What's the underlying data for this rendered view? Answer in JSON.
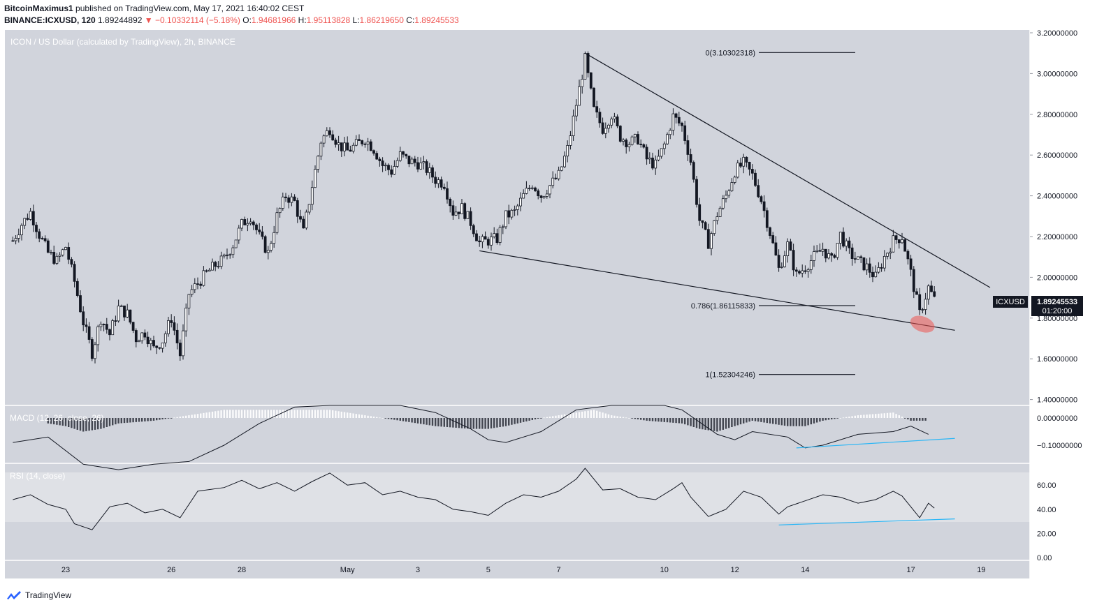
{
  "header": {
    "author": "BitcoinMaximus1",
    "published": "published on TradingView.com, May 17, 2021 16:40:02 CEST",
    "symbol_line": "BINANCE:ICXUSD, 120",
    "last": "1.89244892",
    "change": "−0.10332114 (−5.18%)",
    "open_label": "O:",
    "open": "1.94681966",
    "high_label": "H:",
    "high": "1.95113828",
    "low_label": "L:",
    "low": "1.86219650",
    "close_label": "C:",
    "close": "1.89245533"
  },
  "footer": {
    "brand": "TradingView"
  },
  "colors": {
    "pane_bg": "#d1d4dc",
    "band_bg": "#dfe1e6",
    "candle": "#131722",
    "trend_line": "#131722",
    "divergence": "#29b6f6",
    "highlight": "#ef5350"
  },
  "chart_data": {
    "type": "candlestick",
    "title": "ICON / US Dollar (calculated by TradingView), 2h, BINANCE",
    "currency": "USD",
    "price_axis": {
      "ticks": [
        "3.20000000",
        "3.00000000",
        "2.80000000",
        "2.60000000",
        "2.40000000",
        "2.20000000",
        "2.00000000",
        "1.80000000",
        "1.60000000",
        "1.40000000"
      ],
      "ylim": [
        1.4,
        3.2
      ]
    },
    "x_axis": {
      "labels": [
        "23",
        "26",
        "28",
        "May",
        "3",
        "5",
        "7",
        "10",
        "12",
        "14",
        "17",
        "19"
      ]
    },
    "price_label": {
      "symbol": "ICXUSD",
      "price": "1.89245533",
      "countdown": "01:20:00"
    },
    "close_path": [
      [
        "Apr 21 12:00",
        2.18
      ],
      [
        "Apr 21 18:00",
        2.26
      ],
      [
        "Apr 22 00:00",
        2.32
      ],
      [
        "Apr 22 06:00",
        2.21
      ],
      [
        "Apr 22 12:00",
        2.12
      ],
      [
        "Apr 22 18:00",
        2.08
      ],
      [
        "Apr 23 00:00",
        2.15
      ],
      [
        "Apr 23 06:00",
        1.98
      ],
      [
        "Apr 23 12:00",
        1.78
      ],
      [
        "Apr 23 18:00",
        1.63
      ],
      [
        "Apr 24 00:00",
        1.8
      ],
      [
        "Apr 24 06:00",
        1.72
      ],
      [
        "Apr 24 12:00",
        1.85
      ],
      [
        "Apr 24 18:00",
        1.82
      ],
      [
        "Apr 25 00:00",
        1.7
      ],
      [
        "Apr 25 06:00",
        1.73
      ],
      [
        "Apr 25 12:00",
        1.65
      ],
      [
        "Apr 25 18:00",
        1.69
      ],
      [
        "Apr 26 00:00",
        1.8
      ],
      [
        "Apr 26 06:00",
        1.62
      ],
      [
        "Apr 26 12:00",
        1.92
      ],
      [
        "Apr 26 18:00",
        1.97
      ],
      [
        "Apr 27 00:00",
        2.02
      ],
      [
        "Apr 27 06:00",
        2.06
      ],
      [
        "Apr 27 12:00",
        2.09
      ],
      [
        "Apr 27 18:00",
        2.16
      ],
      [
        "Apr 28 00:00",
        2.26
      ],
      [
        "Apr 28 06:00",
        2.3
      ],
      [
        "Apr 28 12:00",
        2.2
      ],
      [
        "Apr 28 18:00",
        2.12
      ],
      [
        "Apr 29 00:00",
        2.3
      ],
      [
        "Apr 29 06:00",
        2.4
      ],
      [
        "Apr 29 12:00",
        2.37
      ],
      [
        "Apr 29 18:00",
        2.22
      ],
      [
        "Apr 30 00:00",
        2.45
      ],
      [
        "Apr 30 06:00",
        2.67
      ],
      [
        "Apr 30 12:00",
        2.73
      ],
      [
        "Apr 30 18:00",
        2.65
      ],
      [
        "May 1 00:00",
        2.62
      ],
      [
        "May 1 06:00",
        2.65
      ],
      [
        "May 1 12:00",
        2.68
      ],
      [
        "May 1 18:00",
        2.63
      ],
      [
        "May 2 00:00",
        2.55
      ],
      [
        "May 2 06:00",
        2.52
      ],
      [
        "May 2 12:00",
        2.6
      ],
      [
        "May 2 18:00",
        2.57
      ],
      [
        "May 3 00:00",
        2.56
      ],
      [
        "May 3 06:00",
        2.53
      ],
      [
        "May 3 12:00",
        2.48
      ],
      [
        "May 3 18:00",
        2.46
      ],
      [
        "May 4 00:00",
        2.32
      ],
      [
        "May 4 06:00",
        2.34
      ],
      [
        "May 4 12:00",
        2.27
      ],
      [
        "May 4 18:00",
        2.17
      ],
      [
        "May 5 00:00",
        2.18
      ],
      [
        "May 5 06:00",
        2.19
      ],
      [
        "May 5 12:00",
        2.3
      ],
      [
        "May 5 18:00",
        2.32
      ],
      [
        "May 6 00:00",
        2.4
      ],
      [
        "May 6 06:00",
        2.46
      ],
      [
        "May 6 12:00",
        2.4
      ],
      [
        "May 6 18:00",
        2.45
      ],
      [
        "May 7 00:00",
        2.5
      ],
      [
        "May 7 06:00",
        2.63
      ],
      [
        "May 7 12:00",
        2.85
      ],
      [
        "May 7 18:00",
        3.07
      ],
      [
        "May 8 00:00",
        2.82
      ],
      [
        "May 8 06:00",
        2.73
      ],
      [
        "May 8 12:00",
        2.8
      ],
      [
        "May 8 18:00",
        2.69
      ],
      [
        "May 9 00:00",
        2.66
      ],
      [
        "May 9 06:00",
        2.68
      ],
      [
        "May 9 12:00",
        2.58
      ],
      [
        "May 9 18:00",
        2.55
      ],
      [
        "May 10 00:00",
        2.65
      ],
      [
        "May 10 06:00",
        2.79
      ],
      [
        "May 10 12:00",
        2.74
      ],
      [
        "May 10 18:00",
        2.57
      ],
      [
        "May 11 00:00",
        2.28
      ],
      [
        "May 11 06:00",
        2.17
      ],
      [
        "May 11 12:00",
        2.31
      ],
      [
        "May 11 18:00",
        2.4
      ],
      [
        "May 12 00:00",
        2.52
      ],
      [
        "May 12 06:00",
        2.56
      ],
      [
        "May 12 12:00",
        2.5
      ],
      [
        "May 12 18:00",
        2.38
      ],
      [
        "May 13 00:00",
        2.22
      ],
      [
        "May 13 06:00",
        2.04
      ],
      [
        "May 13 12:00",
        2.16
      ],
      [
        "May 13 18:00",
        2.01
      ],
      [
        "May 14 00:00",
        2.05
      ],
      [
        "May 14 06:00",
        2.1
      ],
      [
        "May 14 12:00",
        2.14
      ],
      [
        "May 14 18:00",
        2.08
      ],
      [
        "May 15 00:00",
        2.21
      ],
      [
        "May 15 06:00",
        2.12
      ],
      [
        "May 15 12:00",
        2.08
      ],
      [
        "May 15 18:00",
        2.05
      ],
      [
        "May 16 00:00",
        2.0
      ],
      [
        "May 16 06:00",
        2.1
      ],
      [
        "May 16 12:00",
        2.18
      ],
      [
        "May 16 18:00",
        2.2
      ],
      [
        "May 17 00:00",
        2.02
      ],
      [
        "May 17 06:00",
        1.82
      ],
      [
        "May 17 12:00",
        1.95
      ],
      [
        "May 17 16:00",
        1.89
      ]
    ],
    "trend_lines": [
      {
        "name": "upper-trendline",
        "from": [
          "May 7 18:00",
          3.1
        ],
        "to": [
          "May 19 06:00",
          1.95
        ]
      },
      {
        "name": "lower-trendline",
        "from": [
          "May 4 18:00",
          2.13
        ],
        "to": [
          "May 18 06:00",
          1.74
        ]
      }
    ],
    "fib_levels": [
      {
        "label": "0(3.10302318)",
        "ratio": 0,
        "value": 3.10302318
      },
      {
        "label": "0.786(1.86115833)",
        "ratio": 0.786,
        "value": 1.86115833
      },
      {
        "label": "1(1.52304246)",
        "ratio": 1,
        "value": 1.52304246
      }
    ],
    "highlight": {
      "time": "May 17 06:00",
      "value": 1.77
    },
    "macd": {
      "label": "MACD (12, 26, close, 26)",
      "ticks": [
        "0.00000000",
        "−0.10000000"
      ],
      "macd_path": [
        [
          "Apr 21 12:00",
          -0.09
        ],
        [
          "Apr 22 12:00",
          -0.07
        ],
        [
          "Apr 23 12:00",
          -0.17
        ],
        [
          "Apr 24 12:00",
          -0.19
        ],
        [
          "Apr 25 12:00",
          -0.17
        ],
        [
          "Apr 26 12:00",
          -0.16
        ],
        [
          "Apr 27 12:00",
          -0.1
        ],
        [
          "Apr 28 12:00",
          -0.02
        ],
        [
          "Apr 29 12:00",
          0.04
        ],
        [
          "Apr 30 12:00",
          0.1
        ],
        [
          "May 1 12:00",
          0.09
        ],
        [
          "May 2 12:00",
          0.06
        ],
        [
          "May 3 12:00",
          0.02
        ],
        [
          "May 4 12:00",
          -0.04
        ],
        [
          "May 5 00:00",
          -0.08
        ],
        [
          "May 5 12:00",
          -0.09
        ],
        [
          "May 6 12:00",
          -0.05
        ],
        [
          "May 7 12:00",
          0.03
        ],
        [
          "May 8 12:00",
          0.09
        ],
        [
          "May 9 12:00",
          0.07
        ],
        [
          "May 10 00:00",
          0.06
        ],
        [
          "May 10 12:00",
          0.03
        ],
        [
          "May 11 12:00",
          -0.06
        ],
        [
          "May 12 00:00",
          -0.08
        ],
        [
          "May 12 12:00",
          -0.05
        ],
        [
          "May 13 12:00",
          -0.07
        ],
        [
          "May 14 00:00",
          -0.11
        ],
        [
          "May 14 12:00",
          -0.1
        ],
        [
          "May 15 12:00",
          -0.06
        ],
        [
          "May 16 12:00",
          -0.05
        ],
        [
          "May 17 00:00",
          -0.03
        ],
        [
          "May 17 12:00",
          -0.06
        ]
      ],
      "histogram": [
        [
          "Apr 22 12:00",
          -0.02
        ],
        [
          "Apr 23 00:00",
          -0.03
        ],
        [
          "Apr 23 12:00",
          -0.05
        ],
        [
          "Apr 24 00:00",
          -0.04
        ],
        [
          "Apr 24 12:00",
          -0.02
        ],
        [
          "Apr 25 12:00",
          -0.01
        ],
        [
          "Apr 26 12:00",
          0.01
        ],
        [
          "Apr 27 00:00",
          0.02
        ],
        [
          "Apr 27 12:00",
          0.03
        ],
        [
          "Apr 28 12:00",
          0.03
        ],
        [
          "Apr 29 12:00",
          0.03
        ],
        [
          "Apr 30 12:00",
          0.03
        ],
        [
          "May 1 00:00",
          0.02
        ],
        [
          "May 1 12:00",
          0.01
        ],
        [
          "May 2 12:00",
          -0.01
        ],
        [
          "May 3 12:00",
          -0.03
        ],
        [
          "May 4 12:00",
          -0.04
        ],
        [
          "May 5 00:00",
          -0.04
        ],
        [
          "May 5 12:00",
          -0.03
        ],
        [
          "May 6 12:00",
          0.0
        ],
        [
          "May 7 12:00",
          0.02
        ],
        [
          "May 8 00:00",
          0.03
        ],
        [
          "May 8 12:00",
          0.01
        ],
        [
          "May 9 12:00",
          -0.01
        ],
        [
          "May 10 12:00",
          -0.02
        ],
        [
          "May 11 00:00",
          -0.04
        ],
        [
          "May 11 12:00",
          -0.05
        ],
        [
          "May 12 00:00",
          -0.03
        ],
        [
          "May 12 12:00",
          -0.01
        ],
        [
          "May 13 12:00",
          -0.03
        ],
        [
          "May 14 00:00",
          -0.03
        ],
        [
          "May 14 12:00",
          -0.01
        ],
        [
          "May 15 12:00",
          0.01
        ],
        [
          "May 16 12:00",
          0.02
        ],
        [
          "May 17 00:00",
          -0.01
        ],
        [
          "May 17 12:00",
          -0.01
        ]
      ],
      "divergence_line": {
        "from": [
          "May 13 18:00",
          -0.11
        ],
        "to": [
          "May 18 06:00",
          -0.075
        ]
      }
    },
    "rsi": {
      "label": "RSI (14, close)",
      "ticks": [
        "60.00",
        "40.00",
        "20.00",
        "0.00"
      ],
      "band": [
        30,
        70
      ],
      "rsi_path": [
        [
          "Apr 21 12:00",
          48
        ],
        [
          "Apr 22 00:00",
          52
        ],
        [
          "Apr 22 12:00",
          44
        ],
        [
          "Apr 23 00:00",
          40
        ],
        [
          "Apr 23 06:00",
          28
        ],
        [
          "Apr 23 18:00",
          23
        ],
        [
          "Apr 24 06:00",
          42
        ],
        [
          "Apr 24 18:00",
          45
        ],
        [
          "Apr 25 06:00",
          37
        ],
        [
          "Apr 25 18:00",
          40
        ],
        [
          "Apr 26 06:00",
          33
        ],
        [
          "Apr 26 18:00",
          55
        ],
        [
          "Apr 27 12:00",
          58
        ],
        [
          "Apr 28 00:00",
          64
        ],
        [
          "Apr 28 12:00",
          57
        ],
        [
          "Apr 29 00:00",
          62
        ],
        [
          "Apr 29 12:00",
          55
        ],
        [
          "Apr 30 00:00",
          63
        ],
        [
          "Apr 30 12:00",
          70
        ],
        [
          "May 1 00:00",
          60
        ],
        [
          "May 1 12:00",
          62
        ],
        [
          "May 2 00:00",
          52
        ],
        [
          "May 2 12:00",
          55
        ],
        [
          "May 3 00:00",
          50
        ],
        [
          "May 3 12:00",
          48
        ],
        [
          "May 4 00:00",
          40
        ],
        [
          "May 4 12:00",
          38
        ],
        [
          "May 5 00:00",
          35
        ],
        [
          "May 5 12:00",
          45
        ],
        [
          "May 6 00:00",
          52
        ],
        [
          "May 6 12:00",
          50
        ],
        [
          "May 7 00:00",
          55
        ],
        [
          "May 7 12:00",
          65
        ],
        [
          "May 7 18:00",
          74
        ],
        [
          "May 8 06:00",
          56
        ],
        [
          "May 8 18:00",
          57
        ],
        [
          "May 9 06:00",
          50
        ],
        [
          "May 9 18:00",
          48
        ],
        [
          "May 10 06:00",
          57
        ],
        [
          "May 10 12:00",
          62
        ],
        [
          "May 10 18:00",
          50
        ],
        [
          "May 11 06:00",
          34
        ],
        [
          "May 11 18:00",
          40
        ],
        [
          "May 12 06:00",
          55
        ],
        [
          "May 12 18:00",
          50
        ],
        [
          "May 13 06:00",
          36
        ],
        [
          "May 13 12:00",
          42
        ],
        [
          "May 14 00:00",
          47
        ],
        [
          "May 14 12:00",
          52
        ],
        [
          "May 15 00:00",
          50
        ],
        [
          "May 15 12:00",
          45
        ],
        [
          "May 16 00:00",
          48
        ],
        [
          "May 16 12:00",
          55
        ],
        [
          "May 16 18:00",
          51
        ],
        [
          "May 17 06:00",
          33
        ],
        [
          "May 17 12:00",
          45
        ],
        [
          "May 17 16:00",
          41
        ]
      ],
      "divergence_line": {
        "from": [
          "May 13 06:00",
          27
        ],
        "to": [
          "May 18 06:00",
          32
        ]
      }
    }
  }
}
